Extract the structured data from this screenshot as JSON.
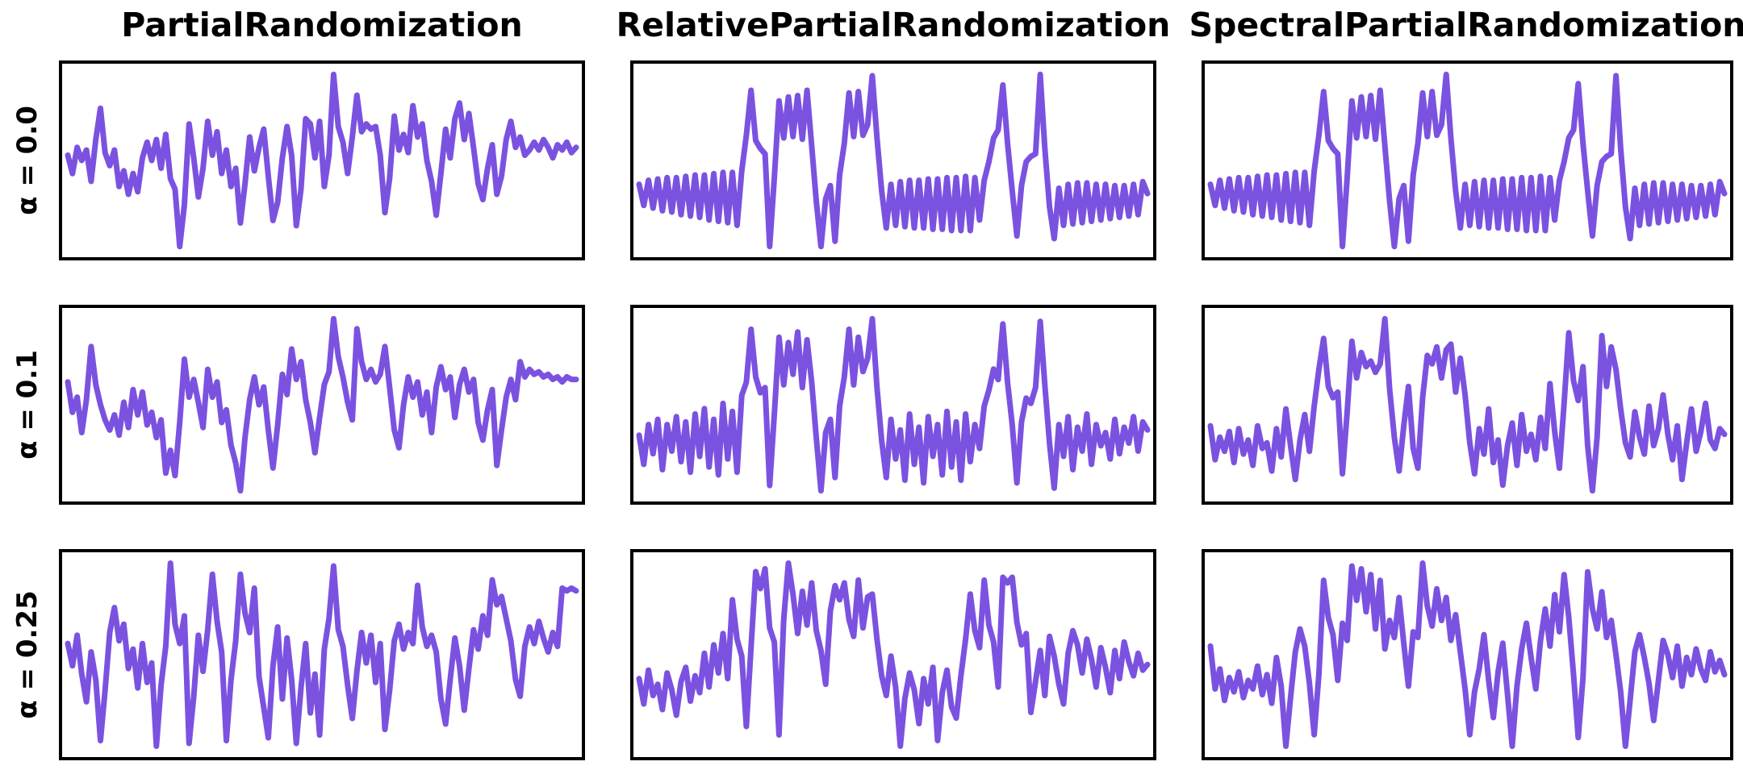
{
  "figure": {
    "background": "#ffffff",
    "border_color": "#000000",
    "title_color": "#000000"
  },
  "chart_data": {
    "type": "line",
    "grid": [
      3,
      3
    ],
    "title": "",
    "xlabel": "",
    "ylabel": "",
    "axes_ticks_visible": false,
    "legend": "none",
    "line_color": "#7B52E0",
    "line_width": 7,
    "columns": [
      "PartialRandomization",
      "RelativePartialRandomization",
      "SpectralPartialRandomization"
    ],
    "rows": [
      "α = 0.0",
      "α = 0.1",
      "α = 0.25"
    ],
    "panels": [
      {
        "row": "α = 0.0",
        "col": "PartialRandomization",
        "values": [
          0.3,
          -0.4,
          0.6,
          0.1,
          0.5,
          -0.7,
          0.9,
          2.1,
          0.4,
          -0.1,
          0.5,
          -0.9,
          -0.3,
          -1.2,
          -0.4,
          -1.1,
          0.2,
          0.8,
          0.1,
          0.9,
          -0.2,
          1.1,
          -0.6,
          -1.0,
          -3.2,
          -1.6,
          1.5,
          0.2,
          -1.3,
          -0.2,
          1.6,
          0.3,
          1.2,
          -0.4,
          0.5,
          -0.9,
          -0.2,
          -2.3,
          -0.8,
          1.0,
          -0.3,
          0.6,
          1.3,
          -0.5,
          -2.2,
          -1.5,
          0.2,
          1.4,
          0.3,
          -2.4,
          -1.0,
          1.7,
          1.5,
          0.2,
          1.6,
          -0.9,
          0.3,
          3.4,
          1.4,
          0.8,
          -0.4,
          1.0,
          2.6,
          1.2,
          1.5,
          1.3,
          1.4,
          0.3,
          -1.9,
          -0.6,
          1.8,
          0.5,
          1.1,
          0.4,
          2.2,
          1.0,
          1.5,
          0.1,
          -0.7,
          -2.0,
          -0.4,
          1.3,
          0.2,
          1.7,
          2.3,
          0.9,
          1.9,
          0.6,
          -0.8,
          -1.4,
          -0.2,
          0.7,
          -1.2,
          -0.5,
          0.9,
          1.6,
          0.6,
          1.0,
          0.3,
          0.5,
          0.8,
          0.5,
          0.9,
          0.6,
          0.2,
          0.7,
          0.5,
          0.8,
          0.4,
          0.6
        ]
      },
      {
        "row": "α = 0.0",
        "col": "RelativePartialRandomization",
        "values": [
          -0.55,
          -1.35,
          -0.4,
          -1.45,
          -0.35,
          -1.55,
          -0.3,
          -1.6,
          -0.3,
          -1.7,
          -0.25,
          -1.75,
          -0.2,
          -1.8,
          -0.2,
          -1.9,
          -0.15,
          -1.95,
          -0.1,
          -2.0,
          -0.1,
          -2.1,
          -0.05,
          1.3,
          3.0,
          1.1,
          0.8,
          0.6,
          -2.9,
          -0.3,
          2.6,
          1.2,
          2.75,
          1.25,
          2.8,
          1.15,
          3.0,
          0.9,
          -1.2,
          -2.9,
          -1.1,
          -0.6,
          -2.7,
          -0.2,
          1.0,
          2.9,
          1.25,
          2.95,
          1.3,
          1.7,
          3.55,
          1.2,
          -0.8,
          -2.2,
          -0.55,
          -2.1,
          -0.45,
          -2.15,
          -0.4,
          -2.2,
          -0.4,
          -2.2,
          -0.35,
          -2.25,
          -0.35,
          -2.25,
          -0.3,
          -2.3,
          -0.3,
          -2.3,
          -0.25,
          -2.3,
          -0.3,
          -1.9,
          -0.4,
          0.3,
          1.2,
          1.5,
          3.2,
          1.0,
          -0.8,
          -2.5,
          -0.6,
          0.3,
          0.5,
          0.6,
          3.6,
          0.8,
          -1.4,
          -2.6,
          -0.7,
          -2.1,
          -0.55,
          -2.05,
          -0.5,
          -2.0,
          -0.5,
          -1.95,
          -0.55,
          -1.9,
          -0.55,
          -1.85,
          -0.6,
          -1.8,
          -0.6,
          -1.75,
          -0.55,
          -1.7,
          -0.45,
          -0.9
        ]
      },
      {
        "row": "α = 0.0",
        "col": "SpectralPartialRandomization",
        "values": [
          -0.55,
          -1.35,
          -0.4,
          -1.45,
          -0.35,
          -1.55,
          -0.3,
          -1.6,
          -0.3,
          -1.7,
          -0.25,
          -1.75,
          -0.2,
          -1.8,
          -0.2,
          -1.9,
          -0.15,
          -1.95,
          -0.1,
          -2.0,
          -0.1,
          -2.1,
          -0.05,
          1.3,
          2.95,
          1.1,
          0.8,
          0.6,
          -2.9,
          -0.3,
          2.6,
          1.2,
          2.75,
          1.25,
          2.8,
          1.15,
          3.0,
          0.9,
          -1.2,
          -2.9,
          -1.1,
          -0.6,
          -2.7,
          -0.2,
          1.0,
          2.9,
          1.25,
          2.95,
          1.3,
          1.7,
          3.6,
          1.2,
          -0.8,
          -2.2,
          -0.55,
          -2.1,
          -0.45,
          -2.15,
          -0.4,
          -2.2,
          -0.4,
          -2.2,
          -0.35,
          -2.25,
          -0.35,
          -2.25,
          -0.3,
          -2.3,
          -0.3,
          -2.3,
          -0.25,
          -2.3,
          -0.3,
          -1.9,
          -0.4,
          0.3,
          1.2,
          1.5,
          3.25,
          1.0,
          -0.8,
          -2.5,
          -0.6,
          0.3,
          0.5,
          0.6,
          3.55,
          0.8,
          -1.4,
          -2.6,
          -0.7,
          -2.1,
          -0.55,
          -2.05,
          -0.5,
          -2.0,
          -0.5,
          -1.95,
          -0.55,
          -1.9,
          -0.55,
          -1.85,
          -0.6,
          -1.8,
          -0.6,
          -1.75,
          -0.55,
          -1.7,
          -0.45,
          -0.9
        ]
      },
      {
        "row": "α = 0.1",
        "col": "PartialRandomization",
        "values": [
          1.0,
          -0.2,
          0.4,
          -1.0,
          0.3,
          2.4,
          0.9,
          0.1,
          -0.5,
          -0.9,
          -0.3,
          -1.1,
          0.2,
          -0.8,
          0.7,
          -0.3,
          0.6,
          -0.7,
          -0.2,
          -1.2,
          -0.5,
          -2.6,
          -1.7,
          -2.7,
          -0.6,
          1.9,
          0.4,
          1.1,
          0.2,
          -0.8,
          1.5,
          0.4,
          1.0,
          -0.6,
          -0.1,
          -1.5,
          -2.2,
          -3.3,
          -1.2,
          0.3,
          1.2,
          0.1,
          0.8,
          -0.9,
          -2.4,
          -0.7,
          1.3,
          0.5,
          2.3,
          1.1,
          1.8,
          0.3,
          -0.6,
          -1.8,
          -0.4,
          0.9,
          1.4,
          3.5,
          2.0,
          1.2,
          0.2,
          -0.5,
          3.1,
          1.8,
          1.1,
          1.5,
          1.0,
          1.3,
          2.4,
          0.8,
          -0.9,
          -1.6,
          0.1,
          1.2,
          0.4,
          1.0,
          -0.3,
          0.6,
          -1.0,
          0.8,
          1.6,
          0.7,
          1.2,
          -0.4,
          0.9,
          1.5,
          0.6,
          1.1,
          -0.6,
          -1.3,
          -0.1,
          0.7,
          -2.3,
          -0.9,
          0.4,
          1.1,
          0.3,
          1.8,
          1.2,
          1.5,
          1.3,
          1.4,
          1.2,
          1.3,
          1.1,
          1.2,
          1.0,
          1.2,
          1.1,
          1.1
        ]
      },
      {
        "row": "α = 0.1",
        "col": "RelativePartialRandomization",
        "values": [
          -0.9,
          -2.0,
          -0.5,
          -1.6,
          -0.3,
          -2.2,
          -0.5,
          -1.5,
          -0.2,
          -1.9,
          -0.4,
          -2.3,
          -0.1,
          -1.7,
          0.1,
          -2.1,
          -0.3,
          -2.4,
          0.3,
          -1.8,
          0.0,
          -2.3,
          0.6,
          1.1,
          3.1,
          1.3,
          0.7,
          0.9,
          -2.8,
          -0.1,
          2.8,
          1.0,
          2.6,
          1.4,
          3.0,
          0.9,
          2.7,
          1.1,
          -1.0,
          -3.0,
          -0.8,
          -0.3,
          -2.5,
          0.2,
          1.3,
          3.1,
          1.0,
          2.8,
          1.5,
          2.0,
          3.5,
          0.9,
          -1.1,
          -2.5,
          -0.3,
          -1.8,
          -0.7,
          -2.6,
          -0.1,
          -2.0,
          -0.6,
          -2.7,
          -0.2,
          -1.7,
          -0.5,
          -2.4,
          0.0,
          -2.1,
          -0.4,
          -2.6,
          -0.1,
          -1.9,
          -0.5,
          -1.4,
          0.2,
          0.8,
          1.6,
          1.2,
          3.3,
          1.1,
          -0.5,
          -2.7,
          -0.4,
          0.5,
          0.3,
          0.9,
          3.4,
          1.0,
          -1.2,
          -2.9,
          -0.5,
          -1.7,
          -0.2,
          -2.2,
          -0.6,
          -1.5,
          -0.1,
          -2.0,
          -0.5,
          -1.3,
          -0.8,
          -1.8,
          -0.3,
          -1.6,
          -0.6,
          -1.2,
          -0.2,
          -1.5,
          -0.4,
          -0.7
        ]
      },
      {
        "row": "α = 0.1",
        "col": "SpectralPartialRandomization",
        "values": [
          -0.2,
          -1.4,
          -0.6,
          -1.1,
          -0.4,
          -1.5,
          -0.3,
          -1.2,
          -0.7,
          -1.6,
          -0.2,
          -1.0,
          -0.8,
          -1.8,
          -0.3,
          -1.3,
          0.4,
          -0.9,
          -2.1,
          -0.7,
          0.2,
          -1.1,
          0.5,
          1.8,
          2.9,
          1.2,
          0.8,
          1.0,
          -1.9,
          0.3,
          2.8,
          1.5,
          2.4,
          1.9,
          2.1,
          1.7,
          2.0,
          3.6,
          1.1,
          -0.6,
          -1.8,
          -0.2,
          1.2,
          -1.0,
          -1.7,
          0.8,
          2.3,
          2.0,
          2.6,
          1.5,
          2.5,
          2.7,
          1.0,
          2.2,
          0.9,
          -0.8,
          -1.9,
          -0.3,
          -1.2,
          0.4,
          -1.5,
          -0.7,
          -2.3,
          -0.9,
          -0.1,
          -1.6,
          0.2,
          -1.1,
          -0.5,
          -1.4,
          0.1,
          -1.0,
          1.3,
          -0.4,
          -1.7,
          0.6,
          3.1,
          1.4,
          0.7,
          1.9,
          -0.9,
          -2.5,
          -0.6,
          3.0,
          1.2,
          2.6,
          1.8,
          0.4,
          -0.8,
          -1.3,
          0.3,
          -0.6,
          -1.2,
          0.5,
          -0.9,
          -0.3,
          0.9,
          -0.5,
          -1.4,
          -0.2,
          -2.1,
          -0.8,
          0.4,
          -1.1,
          -0.4,
          0.6,
          -0.7,
          -1.0,
          -0.3,
          -0.5
        ]
      },
      {
        "row": "α = 0.25",
        "col": "PartialRandomization",
        "values": [
          0.5,
          -0.3,
          0.8,
          -0.6,
          -1.6,
          0.2,
          -0.8,
          -3.0,
          -1.2,
          0.9,
          1.8,
          0.6,
          1.2,
          -0.4,
          0.3,
          -1.1,
          0.5,
          -0.9,
          -0.2,
          -3.2,
          -1.0,
          0.4,
          3.4,
          1.2,
          0.5,
          1.5,
          -3.1,
          -1.4,
          0.8,
          -0.5,
          1.0,
          3.0,
          1.3,
          0.2,
          -3.0,
          -0.8,
          0.6,
          3.0,
          1.6,
          0.9,
          2.5,
          -0.7,
          -1.8,
          -2.9,
          -0.3,
          1.1,
          -1.5,
          0.7,
          -0.8,
          -3.1,
          -1.1,
          0.5,
          -2.0,
          -0.6,
          -2.8,
          0.3,
          1.4,
          3.3,
          1.0,
          0.4,
          -1.0,
          -2.2,
          -0.5,
          0.9,
          -0.2,
          0.8,
          -0.9,
          0.5,
          -2.6,
          -1.2,
          0.6,
          1.2,
          0.3,
          0.9,
          0.5,
          2.6,
          1.1,
          0.4,
          0.8,
          0.2,
          -1.5,
          -2.4,
          -0.8,
          0.7,
          -0.3,
          -1.9,
          -0.4,
          1.0,
          0.3,
          1.5,
          0.8,
          2.8,
          1.9,
          2.2,
          1.4,
          0.6,
          -0.8,
          -1.4,
          0.4,
          1.1,
          0.5,
          1.3,
          0.7,
          0.2,
          0.9,
          0.4,
          2.5,
          2.4,
          2.5,
          2.4
        ]
      },
      {
        "row": "α = 0.25",
        "col": "RelativePartialRandomization",
        "values": [
          -0.6,
          -1.5,
          -0.3,
          -1.2,
          -0.8,
          -1.7,
          -0.4,
          -1.0,
          -1.9,
          -0.7,
          -0.2,
          -1.4,
          -0.5,
          -1.1,
          0.3,
          -0.9,
          0.6,
          -0.4,
          1.0,
          -0.6,
          2.2,
          0.8,
          0.2,
          -2.3,
          0.5,
          3.2,
          2.6,
          3.3,
          1.2,
          0.7,
          -2.6,
          1.5,
          3.5,
          2.4,
          1.0,
          2.5,
          1.3,
          2.8,
          1.1,
          0.4,
          -0.8,
          1.8,
          2.7,
          2.2,
          2.8,
          1.5,
          0.9,
          2.9,
          1.2,
          2.3,
          2.4,
          0.8,
          -0.5,
          -1.2,
          0.2,
          -0.9,
          -3.0,
          -1.3,
          -0.4,
          -1.0,
          -2.2,
          -0.6,
          -1.5,
          -0.2,
          -2.8,
          -1.1,
          -0.3,
          -1.6,
          -2.0,
          -0.5,
          0.8,
          2.4,
          1.1,
          0.5,
          2.9,
          1.3,
          0.7,
          -0.9,
          3.0,
          2.8,
          3.0,
          1.4,
          0.6,
          1.0,
          -1.8,
          -0.7,
          0.4,
          -1.2,
          0.9,
          0.2,
          -0.8,
          -1.5,
          0.3,
          1.1,
          0.6,
          -0.4,
          0.8,
          0.1,
          -0.9,
          0.5,
          -0.2,
          -1.1,
          0.4,
          -0.6,
          0.7,
          0.0,
          -0.5,
          0.3,
          -0.3,
          -0.1
        ]
      },
      {
        "row": "α = 0.25",
        "col": "SpectralPartialRandomization",
        "values": [
          0.6,
          -0.9,
          -0.2,
          -1.3,
          -0.5,
          -1.0,
          -0.3,
          -1.2,
          -0.6,
          -0.9,
          -0.1,
          -1.1,
          -0.4,
          -1.4,
          0.2,
          -0.8,
          -2.9,
          -1.2,
          0.4,
          1.2,
          0.6,
          -0.7,
          -2.5,
          -0.4,
          2.9,
          1.6,
          1.0,
          -0.6,
          1.4,
          0.8,
          3.4,
          2.2,
          3.3,
          1.8,
          3.1,
          1.2,
          2.9,
          0.5,
          1.5,
          0.9,
          2.3,
          0.7,
          -0.8,
          1.1,
          0.9,
          3.5,
          2.0,
          1.3,
          2.6,
          1.5,
          2.3,
          0.8,
          1.7,
          0.4,
          -0.9,
          -2.5,
          -1.0,
          -0.2,
          1.0,
          -0.6,
          -1.9,
          -0.3,
          0.7,
          -1.1,
          -2.9,
          -0.8,
          0.5,
          1.4,
          0.2,
          -0.9,
          0.8,
          1.9,
          0.6,
          2.4,
          1.1,
          3.1,
          1.6,
          -0.4,
          -2.6,
          -0.5,
          3.2,
          1.9,
          1.2,
          2.5,
          0.9,
          1.5,
          0.3,
          -1.0,
          -2.9,
          -1.3,
          0.4,
          1.0,
          0.2,
          -0.7,
          -2.0,
          -0.6,
          0.8,
          0.3,
          -0.5,
          0.6,
          -0.8,
          0.2,
          -0.4,
          0.5,
          -0.2,
          -0.6,
          0.4,
          -0.3,
          0.1,
          -0.4
        ]
      }
    ]
  }
}
